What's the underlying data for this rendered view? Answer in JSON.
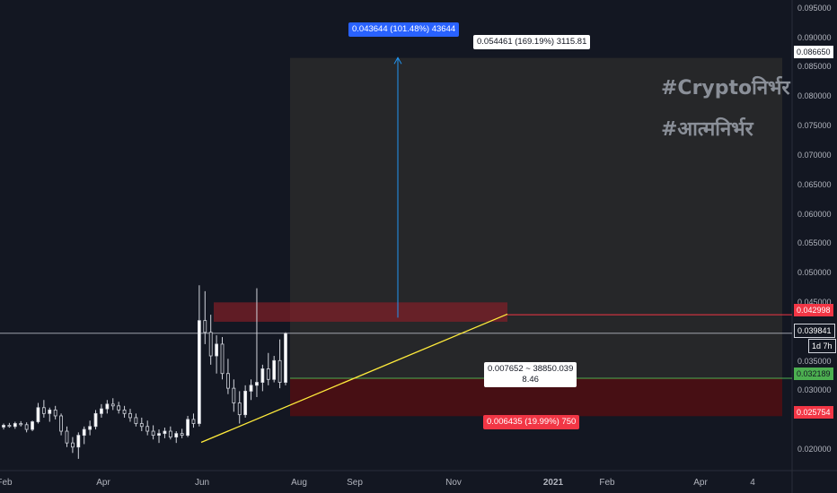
{
  "watermark": {
    "line1": "#Cryptoनिर्भर",
    "line2": "#आत्मनिर्भर"
  },
  "chart_data": {
    "type": "candlestick",
    "y_axis": {
      "ticks": [
        "0.095000",
        "0.090000",
        "0.085000",
        "0.080000",
        "0.075000",
        "0.070000",
        "0.065000",
        "0.060000",
        "0.055000",
        "0.050000",
        "0.045000",
        "0.035000",
        "0.030000",
        "0.020000"
      ],
      "tick_values": [
        0.095,
        0.09,
        0.085,
        0.08,
        0.075,
        0.07,
        0.065,
        0.06,
        0.055,
        0.05,
        0.045,
        0.035,
        0.03,
        0.02
      ],
      "range": [
        0.0165,
        0.0965
      ]
    },
    "x_axis": {
      "labels": [
        "Feb",
        "Apr",
        "Jun",
        "Aug",
        "Sep",
        "Nov",
        "2021",
        "Feb",
        "Apr",
        "4"
      ],
      "bold": [
        "2021"
      ]
    },
    "price_labels": {
      "target": {
        "text": "0.086650",
        "value": 0.08665
      },
      "resistance": {
        "text": "0.042998",
        "value": 0.042998,
        "color": "#f23645"
      },
      "current": {
        "text": "0.039841",
        "value": 0.039841
      },
      "countdown": "1d 7h",
      "entry": {
        "text": "0.032189",
        "value": 0.032189,
        "color": "#4caf50"
      },
      "stop": {
        "text": "0.025754",
        "value": 0.025754,
        "color": "#f23645"
      }
    },
    "annotations": {
      "move_label": "0.043644 (101.48%) 43644",
      "target_label": "0.054461 (169.19%) 3115.81",
      "rr_line1": "0.007652 ~ 38850.039",
      "rr_line2": "8.46",
      "stop_label": "0.006435 (19.99%) 750"
    },
    "candles": [
      [
        0.0239,
        0.0245,
        0.0235,
        0.0242
      ],
      [
        0.0242,
        0.0246,
        0.0238,
        0.024
      ],
      [
        0.024,
        0.0248,
        0.0236,
        0.0245
      ],
      [
        0.0245,
        0.0249,
        0.024,
        0.0243
      ],
      [
        0.0243,
        0.0247,
        0.023,
        0.0235
      ],
      [
        0.0235,
        0.025,
        0.0232,
        0.0248
      ],
      [
        0.0248,
        0.028,
        0.0245,
        0.0272
      ],
      [
        0.0272,
        0.0285,
        0.0255,
        0.0262
      ],
      [
        0.0262,
        0.0272,
        0.0248,
        0.0268
      ],
      [
        0.0268,
        0.0275,
        0.0252,
        0.0258
      ],
      [
        0.0258,
        0.0262,
        0.0225,
        0.0232
      ],
      [
        0.0232,
        0.024,
        0.0205,
        0.0212
      ],
      [
        0.0212,
        0.0222,
        0.0195,
        0.0205
      ],
      [
        0.0205,
        0.023,
        0.0185,
        0.0225
      ],
      [
        0.0225,
        0.024,
        0.021,
        0.0235
      ],
      [
        0.0235,
        0.025,
        0.0225,
        0.024
      ],
      [
        0.024,
        0.0268,
        0.0235,
        0.0262
      ],
      [
        0.0262,
        0.0278,
        0.0255,
        0.027
      ],
      [
        0.027,
        0.0285,
        0.0262,
        0.0278
      ],
      [
        0.0278,
        0.0288,
        0.0268,
        0.0275
      ],
      [
        0.0275,
        0.0282,
        0.0262,
        0.0268
      ],
      [
        0.0268,
        0.0275,
        0.0255,
        0.0262
      ],
      [
        0.0262,
        0.027,
        0.0248,
        0.0255
      ],
      [
        0.0255,
        0.0262,
        0.024,
        0.0245
      ],
      [
        0.0245,
        0.0255,
        0.0232,
        0.024
      ],
      [
        0.024,
        0.025,
        0.0225,
        0.0232
      ],
      [
        0.0232,
        0.0242,
        0.0218,
        0.0225
      ],
      [
        0.0225,
        0.0235,
        0.0212,
        0.0228
      ],
      [
        0.0228,
        0.0238,
        0.022,
        0.0232
      ],
      [
        0.0232,
        0.024,
        0.0218,
        0.0222
      ],
      [
        0.0222,
        0.0232,
        0.0212,
        0.0228
      ],
      [
        0.0228,
        0.0236,
        0.022,
        0.0225
      ],
      [
        0.0225,
        0.0258,
        0.0222,
        0.0252
      ],
      [
        0.0252,
        0.0262,
        0.0238,
        0.0245
      ],
      [
        0.0245,
        0.048,
        0.024,
        0.042
      ],
      [
        0.042,
        0.047,
        0.038,
        0.04
      ],
      [
        0.04,
        0.043,
        0.0345,
        0.036
      ],
      [
        0.036,
        0.0395,
        0.033,
        0.038
      ],
      [
        0.038,
        0.0392,
        0.032,
        0.033
      ],
      [
        0.033,
        0.0355,
        0.0295,
        0.0305
      ],
      [
        0.0305,
        0.032,
        0.0265,
        0.028
      ],
      [
        0.028,
        0.03,
        0.0245,
        0.026
      ],
      [
        0.026,
        0.031,
        0.0255,
        0.03
      ],
      [
        0.03,
        0.032,
        0.0285,
        0.031
      ],
      [
        0.031,
        0.0475,
        0.029,
        0.0315
      ],
      [
        0.0315,
        0.0345,
        0.03,
        0.0338
      ],
      [
        0.0338,
        0.0365,
        0.031,
        0.032
      ],
      [
        0.032,
        0.036,
        0.0315,
        0.0352
      ],
      [
        0.0352,
        0.0388,
        0.0305,
        0.0315
      ],
      [
        0.0315,
        0.04,
        0.031,
        0.0398
      ]
    ]
  }
}
